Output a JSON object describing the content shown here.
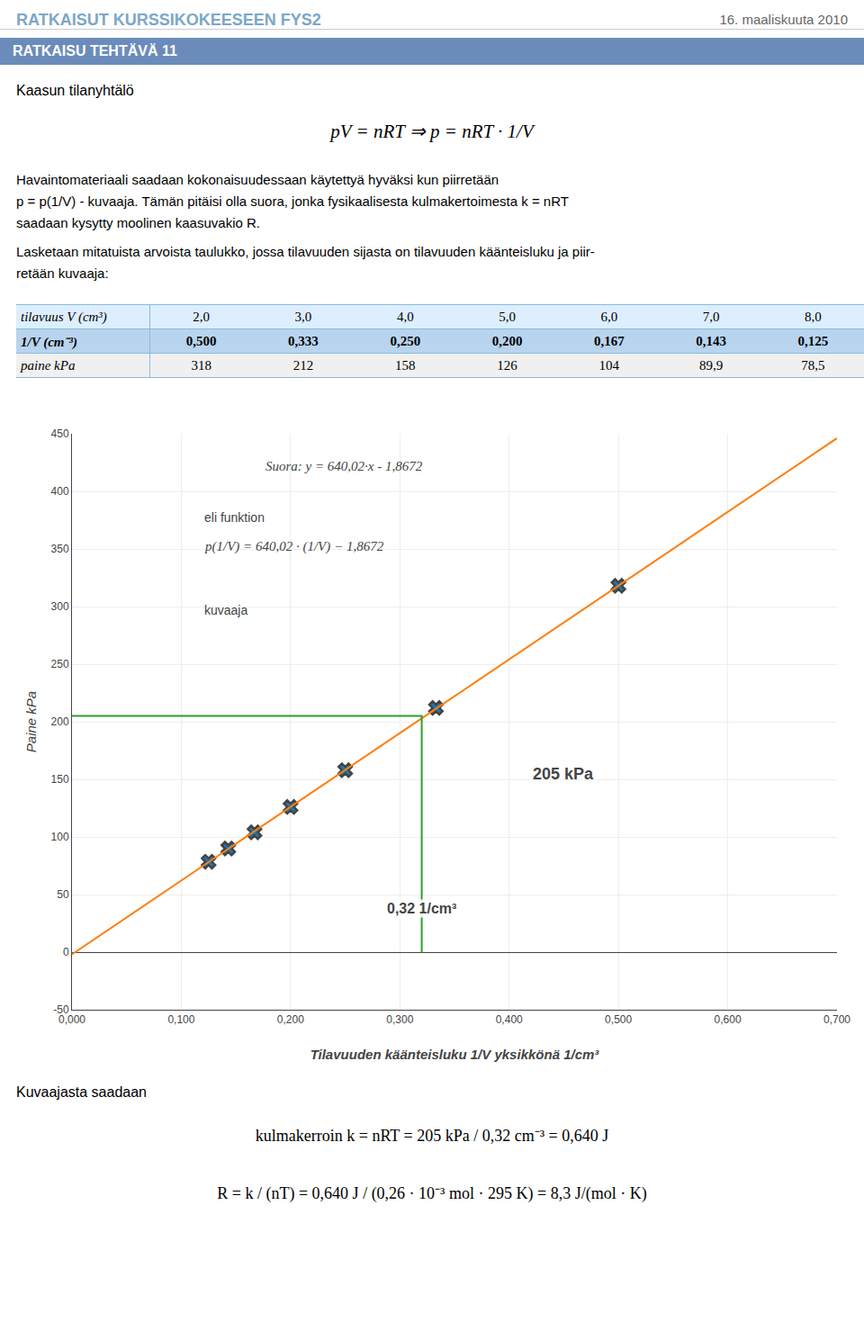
{
  "header": {
    "left": "RATKAISUT KURSSIKOKEESEEN FYS2",
    "right": "16. maaliskuuta 2010"
  },
  "section_title": "RATKAISU TEHTÄVÄ 11",
  "intro": "Kaasun tilanyhtälö",
  "equation": "pV = nRT ⇒ p = nRT · 1/V",
  "body": [
    "Havaintomateriaali saadaan kokonaisuudessaan käytettyä hyväksi kun piirretään",
    "p = p(1/V) - kuvaaja. Tämän pitäisi olla suora, jonka fysikaalisesta kulmakertoimesta k = nRT",
    "saadaan kysytty moolinen kaasuvakio R.",
    "Lasketaan mitatuista arvoista taulukko, jossa tilavuuden sijasta on tilavuuden käänteisluku ja piir-",
    "retään kuvaaja:"
  ],
  "table": {
    "rows": [
      {
        "label": "tilavuus V (cm³)",
        "values": [
          "2,0",
          "3,0",
          "4,0",
          "5,0",
          "6,0",
          "7,0",
          "8,0"
        ],
        "bold": false,
        "color": "#ddeeff"
      },
      {
        "label": "1/V  (cm⁻³)",
        "values": [
          "0,500",
          "0,333",
          "0,250",
          "0,200",
          "0,167",
          "0,143",
          "0,125"
        ],
        "bold": true,
        "color": "#b8d4ee"
      },
      {
        "label": "paine kPa",
        "values": [
          "318",
          "212",
          "158",
          "126",
          "104",
          "89,9",
          "78,5"
        ],
        "bold": false,
        "color": "#f0f0f0"
      }
    ]
  },
  "chart_data": {
    "type": "scatter",
    "xlabel": "Tilavuuden käänteisluku 1/V yksikkönä 1/cm³",
    "ylabel": "Paine kPa",
    "series": [
      {
        "type": "scatter",
        "marker": "x",
        "x": [
          0.5,
          0.333,
          0.25,
          0.2,
          0.167,
          0.143,
          0.125
        ],
        "values": [
          318,
          212,
          158,
          126,
          104,
          89.9,
          78.5
        ]
      },
      {
        "type": "line",
        "line_style": "solid",
        "x": [
          0.0,
          0.7
        ],
        "values": [
          -1.8672,
          446.1468
        ]
      },
      {
        "type": "line",
        "line_style": "solid",
        "x": [
          0.0,
          0.32,
          0.32
        ],
        "values": [
          205,
          205,
          0
        ]
      }
    ],
    "xlim": [
      0.0,
      0.7
    ],
    "ylim": [
      -50,
      450
    ],
    "xticks": [
      {
        "value": 0.0,
        "label": "0,000"
      },
      {
        "value": 0.1,
        "label": "0,100"
      },
      {
        "value": 0.2,
        "label": "0,200"
      },
      {
        "value": 0.3,
        "label": "0,300"
      },
      {
        "value": 0.4,
        "label": "0,400"
      },
      {
        "value": 0.5,
        "label": "0,500"
      },
      {
        "value": 0.6,
        "label": "0,600"
      },
      {
        "value": 0.7,
        "label": "0,700"
      }
    ],
    "yticks": [
      -50,
      0,
      50,
      100,
      150,
      200,
      250,
      300,
      350,
      400,
      450
    ],
    "grid": true,
    "annotations": [
      "Suora: y = 640,02·x - 1,8672",
      "eli funktion",
      "p(1/V) = 640,02 · (1/V) − 1,8672",
      "kuvaaja",
      "205 kPa",
      "0,32 1/cm³"
    ]
  },
  "footer": {
    "intro": "Kuvaajasta saadaan",
    "equations": [
      "kulmakerroin k = nRT = 205 kPa / 0,32 cm⁻³ = 0,640 J",
      "R = k / (nT) = 0,640 J / (0,26 · 10⁻³ mol · 295 K) = 8,3 J/(mol · K)"
    ]
  }
}
